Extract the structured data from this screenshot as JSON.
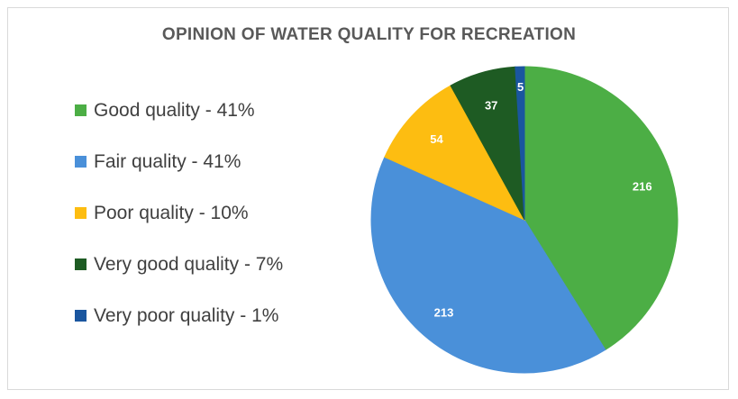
{
  "chart_data": {
    "type": "pie",
    "title": "OPINION OF WATER QUALITY FOR RECREATION",
    "slices": [
      {
        "label": "Good quality - 41%",
        "value": 216,
        "color": "#4cae45"
      },
      {
        "label": "Fair quality - 41%",
        "value": 213,
        "color": "#4a90d9"
      },
      {
        "label": "Poor quality - 10%",
        "value": 54,
        "color": "#fdbd11"
      },
      {
        "label": "Very good quality - 7%",
        "value": 37,
        "color": "#1e5b23"
      },
      {
        "label": "Very poor quality - 1%",
        "value": 5,
        "color": "#1a569f"
      }
    ],
    "legend_position": "left",
    "start_angle": "12 o'clock, clockwise"
  }
}
